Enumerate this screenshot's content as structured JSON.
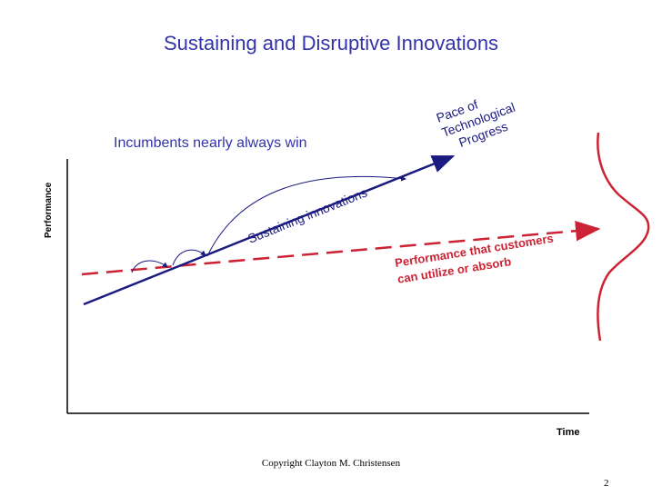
{
  "slide": {
    "title": "Sustaining and Disruptive Innovations",
    "subtitle": "Incumbents nearly always win",
    "copyright": "Copyright Clayton M. Christensen",
    "page_number": "2"
  },
  "axes": {
    "y_label": "Performance",
    "x_label": "Time"
  },
  "labels": {
    "technology_line": [
      "Pace of",
      "Technological",
      "Progress"
    ],
    "sustaining": "Sustaining innovations",
    "customer_line": [
      "Performance that customers",
      "can utilize or absorb"
    ]
  },
  "colors": {
    "title": "#3333aa",
    "technology_line": "#1a1a80",
    "customer_line": "#cc2233",
    "axis": "#000000",
    "distribution_curve": "#cc2233"
  }
}
